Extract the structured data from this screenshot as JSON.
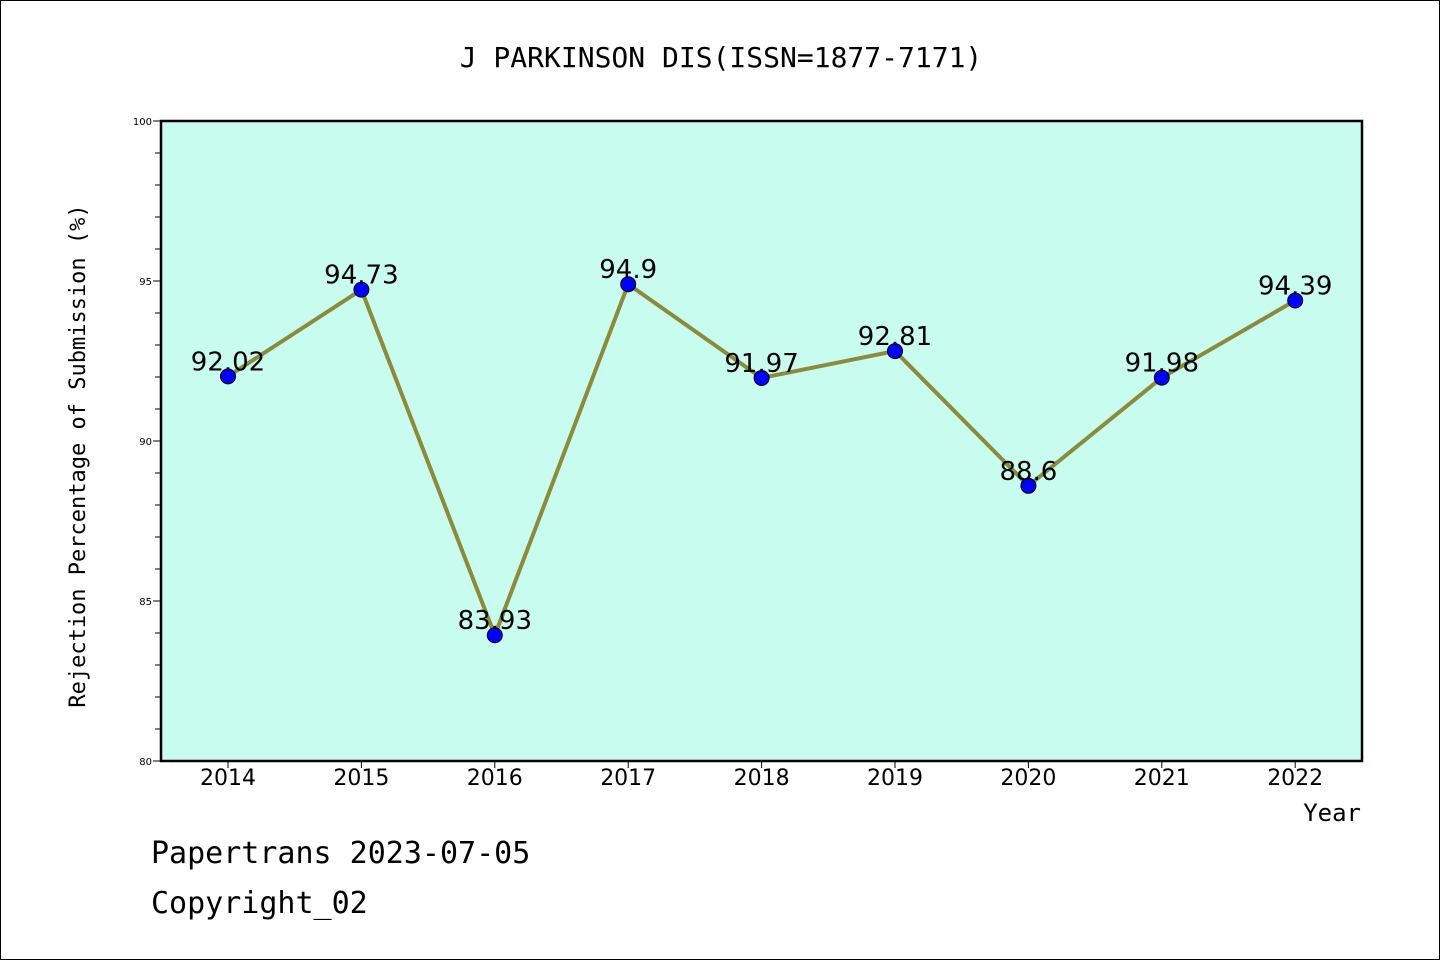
{
  "chart_data": {
    "type": "line",
    "title": "J PARKINSON DIS(ISSN=1877-7171)",
    "xlabel": "Year",
    "ylabel": "Rejection Percentage of Submission (%)",
    "categories": [
      "2014",
      "2015",
      "2016",
      "2017",
      "2018",
      "2019",
      "2020",
      "2021",
      "2022"
    ],
    "values": [
      92.02,
      94.73,
      83.93,
      94.9,
      91.97,
      92.81,
      88.6,
      91.98,
      94.39
    ],
    "value_labels": [
      "92.02",
      "94.73",
      "83.93",
      "94.9",
      "91.97",
      "92.81",
      "88.6",
      "91.98",
      "94.39"
    ],
    "ylim": [
      80,
      100
    ],
    "yticks": [
      80,
      85,
      90,
      95,
      100
    ],
    "grid": false,
    "colors": {
      "plot_bg": "#c8fcee",
      "line": "#8b8b3a",
      "marker": "#0000ff"
    }
  },
  "footer": {
    "line1": "Papertrans 2023-07-05",
    "line2": "Copyright_02"
  }
}
